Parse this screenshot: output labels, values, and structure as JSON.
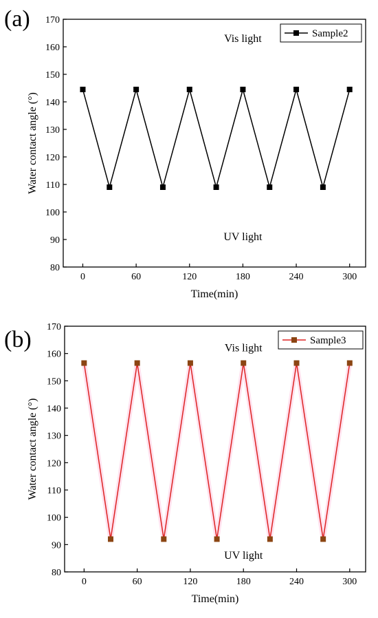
{
  "figure": {
    "panels": [
      {
        "panel_label": "(a)"
      },
      {
        "panel_label": "(b)"
      }
    ]
  },
  "chart_data": [
    {
      "type": "line",
      "panel_label": "(a)",
      "xlabel": "Time(min)",
      "ylabel": "Water contact angle (°)",
      "xlim": [
        -22,
        318
      ],
      "ylim": [
        80,
        170
      ],
      "xticks": [
        0,
        60,
        120,
        180,
        240,
        300
      ],
      "yticks": [
        80,
        90,
        100,
        110,
        120,
        130,
        140,
        150,
        160,
        170
      ],
      "xtick_labels": [
        "0",
        "60",
        "120",
        "180",
        "240",
        "300"
      ],
      "ytick_labels": [
        "80",
        "90",
        "100",
        "110",
        "120",
        "130",
        "140",
        "150",
        "160",
        "170"
      ],
      "legend_position": "top-right",
      "annotations": [
        {
          "text": "Vis light",
          "x": 180,
          "y": 163
        },
        {
          "text": "UV light",
          "x": 180,
          "y": 91
        }
      ],
      "series": [
        {
          "name": "Sample2",
          "line_color": "#000000",
          "marker_color": "#000000",
          "marker": "square",
          "x": [
            0,
            30,
            60,
            90,
            120,
            150,
            180,
            210,
            240,
            270,
            300
          ],
          "y": [
            144.5,
            109,
            144.5,
            109,
            144.5,
            109,
            144.5,
            109,
            144.5,
            109,
            144.5
          ]
        }
      ]
    },
    {
      "type": "line",
      "panel_label": "(b)",
      "xlabel": "Time(min)",
      "ylabel": "Water contact angle (°)",
      "xlim": [
        -22,
        318
      ],
      "ylim": [
        80,
        170
      ],
      "xticks": [
        0,
        60,
        120,
        180,
        240,
        300
      ],
      "yticks": [
        80,
        90,
        100,
        110,
        120,
        130,
        140,
        150,
        160,
        170
      ],
      "xtick_labels": [
        "0",
        "60",
        "120",
        "180",
        "240",
        "300"
      ],
      "ytick_labels": [
        "80",
        "90",
        "100",
        "110",
        "120",
        "130",
        "140",
        "150",
        "160",
        "170"
      ],
      "legend_position": "top-right",
      "annotations": [
        {
          "text": "Vis light",
          "x": 180,
          "y": 162
        },
        {
          "text": "UV light",
          "x": 180,
          "y": 86
        }
      ],
      "series": [
        {
          "name": "Sample3",
          "line_color": "#dd2222",
          "marker_color": "#8b4513",
          "marker": "square",
          "x": [
            0,
            30,
            60,
            90,
            120,
            150,
            180,
            210,
            240,
            270,
            300
          ],
          "y": [
            156.5,
            92,
            156.5,
            92,
            156.5,
            92,
            156.5,
            92,
            156.5,
            92,
            156.5
          ]
        }
      ]
    }
  ]
}
